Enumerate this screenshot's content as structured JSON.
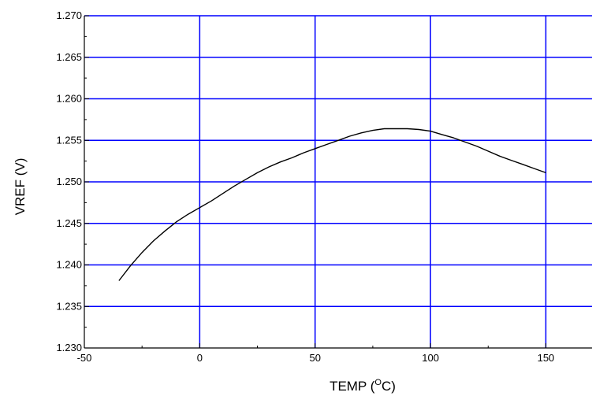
{
  "chart_data": {
    "type": "line",
    "xlabel": "TEMP (",
    "xlabel_sup": "O",
    "xlabel_tail": "C)",
    "ylabel": "VREF  (V)",
    "xlim": [
      -50,
      170
    ],
    "ylim": [
      1.23,
      1.27
    ],
    "x_ticks": [
      "-50",
      "0",
      "50",
      "100",
      "150"
    ],
    "x_tick_values": [
      -50,
      0,
      50,
      100,
      150
    ],
    "y_ticks": [
      "1.230",
      "1.235",
      "1.240",
      "1.245",
      "1.250",
      "1.255",
      "1.260",
      "1.265",
      "1.270"
    ],
    "y_tick_values": [
      1.23,
      1.235,
      1.24,
      1.245,
      1.25,
      1.255,
      1.26,
      1.265,
      1.27
    ],
    "grid": true,
    "grid_color": "#0000ff",
    "line_color": "#000000",
    "series": [
      {
        "x": [
          -35,
          -30,
          -25,
          -20,
          -15,
          -10,
          -5,
          0,
          5,
          10,
          15,
          20,
          25,
          30,
          35,
          40,
          45,
          50,
          55,
          60,
          65,
          70,
          75,
          80,
          85,
          90,
          95,
          100,
          105,
          110,
          115,
          120,
          125,
          130,
          135,
          140,
          145,
          150
        ],
        "values": [
          1.2381,
          1.2399,
          1.2415,
          1.2429,
          1.2441,
          1.2452,
          1.2461,
          1.2469,
          1.2477,
          1.2486,
          1.2495,
          1.2503,
          1.2511,
          1.2518,
          1.2524,
          1.2529,
          1.2535,
          1.254,
          1.2545,
          1.255,
          1.2555,
          1.2559,
          1.2562,
          1.2564,
          1.2564,
          1.2564,
          1.2563,
          1.2561,
          1.2557,
          1.2553,
          1.2548,
          1.2543,
          1.2537,
          1.2531,
          1.2526,
          1.2521,
          1.2516,
          1.2511
        ]
      }
    ]
  }
}
